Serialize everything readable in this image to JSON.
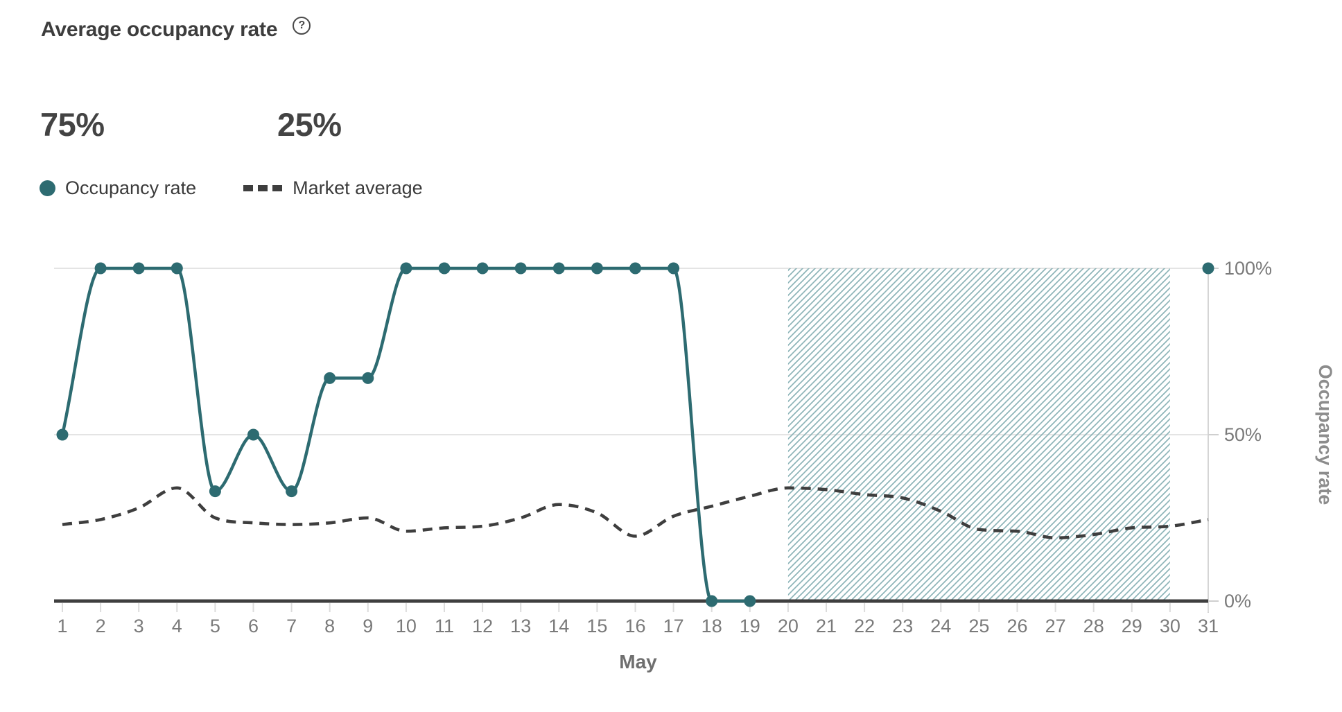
{
  "header": {
    "title": "Average occupancy rate",
    "help_icon": "?"
  },
  "stats": {
    "occupancy_value": "75%",
    "market_value": "25%"
  },
  "legend": {
    "occupancy_label": "Occupancy rate",
    "market_label": "Market average"
  },
  "colors": {
    "accent_teal": "#2d6b71",
    "market_dash": "#3e3e3e",
    "hatch_stroke": "#8db4b8",
    "gridline": "#e4e4e4",
    "axis_dark": "#3f3f3f",
    "tick": "#dcdcdc",
    "axis_label": "#7a7a7a",
    "month_label": "#6f6f6f",
    "right_axis_title": "#8c8c8c"
  },
  "chart_data": {
    "type": "line",
    "x": [
      1,
      2,
      3,
      4,
      5,
      6,
      7,
      8,
      9,
      10,
      11,
      12,
      13,
      14,
      15,
      16,
      17,
      18,
      19,
      20,
      21,
      22,
      23,
      24,
      25,
      26,
      27,
      28,
      29,
      30,
      31
    ],
    "xlabel": "May",
    "ylabel": "Occupancy rate",
    "ylim": [
      0,
      100
    ],
    "yticks": [
      {
        "v": 0,
        "label": "0%"
      },
      {
        "v": 50,
        "label": "50%"
      },
      {
        "v": 100,
        "label": "100%"
      }
    ],
    "grid": true,
    "legend_position": "top-left",
    "series": [
      {
        "name": "Occupancy rate",
        "style": "solid-with-dots",
        "values": [
          50,
          100,
          100,
          100,
          33,
          50,
          33,
          67,
          67,
          100,
          100,
          100,
          100,
          100,
          100,
          100,
          100,
          0,
          0,
          null,
          null,
          null,
          null,
          null,
          null,
          null,
          null,
          null,
          null,
          null,
          100
        ]
      },
      {
        "name": "Market average",
        "style": "dashed",
        "values": [
          23,
          24.5,
          28,
          34,
          25,
          23.5,
          23,
          23.5,
          25,
          21,
          22,
          22.5,
          25,
          29,
          26.5,
          19.5,
          25.5,
          28.5,
          31.5,
          34,
          33.5,
          32,
          31,
          27,
          21.5,
          21,
          19,
          20,
          22,
          22.5,
          24.5
        ]
      }
    ],
    "future_region": {
      "start_day": 20,
      "end_day": 30,
      "style": "hatched"
    }
  }
}
